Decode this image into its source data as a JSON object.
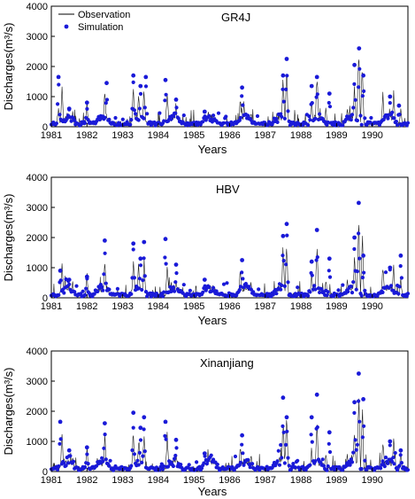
{
  "chart_data": [
    {
      "type": "line",
      "title": "GR4J",
      "xlabel": "Years",
      "ylabel": "Discharges(m³/s)",
      "ylim": [
        0,
        4000
      ],
      "xlim": [
        1981,
        1991
      ],
      "yticks": [
        "0",
        "1000",
        "2000",
        "3000",
        "4000"
      ],
      "xticks": [
        "1981",
        "1982",
        "1983",
        "1984",
        "1985",
        "1986",
        "1987",
        "1988",
        "1989",
        "1990"
      ],
      "legend": {
        "placement": "top-left",
        "entries": [
          "Observation",
          "Simulation"
        ]
      },
      "series": [
        {
          "name": "Observation",
          "style": "line",
          "color": "#000000",
          "peaks": [
            [
              1981.2,
              700
            ],
            [
              1981.3,
              1400
            ],
            [
              1981.6,
              600
            ],
            [
              1982.0,
              900
            ],
            [
              1982.5,
              1450
            ],
            [
              1983.3,
              1550
            ],
            [
              1983.45,
              1300
            ],
            [
              1983.6,
              1500
            ],
            [
              1984.25,
              1400
            ],
            [
              1984.5,
              700
            ],
            [
              1985.4,
              600
            ],
            [
              1986.3,
              1050
            ],
            [
              1986.6,
              600
            ],
            [
              1987.5,
              1950
            ],
            [
              1987.6,
              2250
            ],
            [
              1988.3,
              900
            ],
            [
              1988.45,
              2050
            ],
            [
              1988.7,
              700
            ],
            [
              1989.3,
              650
            ],
            [
              1989.5,
              1600
            ],
            [
              1989.62,
              3100
            ],
            [
              1989.72,
              2500
            ],
            [
              1990.3,
              1200
            ],
            [
              1990.6,
              1300
            ],
            [
              1990.8,
              700
            ]
          ]
        },
        {
          "name": "Simulation",
          "style": "markers",
          "color": "#1a1ad8",
          "peaks": [
            [
              1981.2,
              1650
            ],
            [
              1981.5,
              600
            ],
            [
              1982.0,
              800
            ],
            [
              1982.55,
              1450
            ],
            [
              1983.3,
              1700
            ],
            [
              1983.5,
              1350
            ],
            [
              1983.65,
              1650
            ],
            [
              1984.2,
              1550
            ],
            [
              1984.5,
              900
            ],
            [
              1985.3,
              500
            ],
            [
              1986.35,
              1300
            ],
            [
              1987.5,
              1700
            ],
            [
              1987.6,
              2250
            ],
            [
              1988.3,
              1350
            ],
            [
              1988.45,
              1650
            ],
            [
              1988.8,
              1100
            ],
            [
              1989.5,
              2050
            ],
            [
              1989.63,
              2600
            ],
            [
              1989.75,
              1700
            ],
            [
              1990.5,
              1000
            ],
            [
              1990.75,
              700
            ]
          ]
        }
      ]
    },
    {
      "type": "line",
      "title": "HBV",
      "xlabel": "Years",
      "ylabel": "Discharges(m³/s)",
      "ylim": [
        0,
        4000
      ],
      "xlim": [
        1981,
        1991
      ],
      "yticks": [
        "0",
        "1000",
        "2000",
        "3000",
        "4000"
      ],
      "xticks": [
        "1981",
        "1982",
        "1983",
        "1984",
        "1985",
        "1986",
        "1987",
        "1988",
        "1989",
        "1990"
      ],
      "series": [
        {
          "name": "Observation",
          "style": "line",
          "color": "#000000",
          "peaks": [
            [
              1981.3,
              1450
            ],
            [
              1981.6,
              600
            ],
            [
              1982.0,
              900
            ],
            [
              1982.5,
              1450
            ],
            [
              1983.3,
              1500
            ],
            [
              1983.45,
              1300
            ],
            [
              1983.6,
              1500
            ],
            [
              1984.25,
              1400
            ],
            [
              1984.5,
              700
            ],
            [
              1985.4,
              600
            ],
            [
              1986.3,
              1050
            ],
            [
              1986.6,
              600
            ],
            [
              1987.5,
              1950
            ],
            [
              1987.6,
              2200
            ],
            [
              1988.3,
              900
            ],
            [
              1988.45,
              2050
            ],
            [
              1988.7,
              700
            ],
            [
              1989.3,
              650
            ],
            [
              1989.5,
              1600
            ],
            [
              1989.62,
              3000
            ],
            [
              1989.72,
              2400
            ],
            [
              1990.3,
              1200
            ],
            [
              1990.6,
              1300
            ],
            [
              1990.8,
              700
            ]
          ]
        },
        {
          "name": "Simulation",
          "style": "markers",
          "color": "#1a1ad8",
          "peaks": [
            [
              1981.25,
              900
            ],
            [
              1981.5,
              600
            ],
            [
              1982.0,
              700
            ],
            [
              1982.5,
              1900
            ],
            [
              1983.3,
              1800
            ],
            [
              1983.5,
              1300
            ],
            [
              1983.6,
              1850
            ],
            [
              1984.2,
              1950
            ],
            [
              1984.5,
              1100
            ],
            [
              1985.3,
              600
            ],
            [
              1986.35,
              1250
            ],
            [
              1987.5,
              2050
            ],
            [
              1987.6,
              2450
            ],
            [
              1988.3,
              1200
            ],
            [
              1988.45,
              2250
            ],
            [
              1988.8,
              1300
            ],
            [
              1989.5,
              2000
            ],
            [
              1989.62,
              3150
            ],
            [
              1989.75,
              1400
            ],
            [
              1990.5,
              1000
            ],
            [
              1990.8,
              1400
            ]
          ]
        }
      ]
    },
    {
      "type": "line",
      "title": "Xinanjiang",
      "xlabel": "Years",
      "ylabel": "Discharges(m³/s)",
      "ylim": [
        0,
        4000
      ],
      "xlim": [
        1981,
        1991
      ],
      "yticks": [
        "0",
        "1000",
        "2000",
        "3000",
        "4000"
      ],
      "xticks": [
        "1981",
        "1982",
        "1983",
        "1984",
        "1985",
        "1986",
        "1987",
        "1988",
        "1989",
        "1990"
      ],
      "series": [
        {
          "name": "Observation",
          "style": "line",
          "color": "#000000",
          "peaks": [
            [
              1981.3,
              1400
            ],
            [
              1981.6,
              600
            ],
            [
              1982.0,
              900
            ],
            [
              1982.5,
              1450
            ],
            [
              1983.3,
              1500
            ],
            [
              1983.45,
              1300
            ],
            [
              1983.6,
              1500
            ],
            [
              1984.25,
              1400
            ],
            [
              1984.5,
              700
            ],
            [
              1985.4,
              600
            ],
            [
              1986.3,
              1050
            ],
            [
              1986.6,
              600
            ],
            [
              1987.5,
              1950
            ],
            [
              1987.6,
              2200
            ],
            [
              1988.3,
              900
            ],
            [
              1988.45,
              2100
            ],
            [
              1988.7,
              700
            ],
            [
              1989.3,
              650
            ],
            [
              1989.5,
              1600
            ],
            [
              1989.62,
              3000
            ],
            [
              1989.72,
              2400
            ],
            [
              1990.3,
              1200
            ],
            [
              1990.6,
              1300
            ],
            [
              1990.8,
              700
            ]
          ]
        },
        {
          "name": "Simulation",
          "style": "markers",
          "color": "#1a1ad8",
          "peaks": [
            [
              1981.25,
              1650
            ],
            [
              1981.5,
              700
            ],
            [
              1982.0,
              800
            ],
            [
              1982.5,
              1600
            ],
            [
              1983.3,
              1950
            ],
            [
              1983.5,
              1450
            ],
            [
              1983.6,
              1800
            ],
            [
              1984.2,
              1650
            ],
            [
              1984.5,
              1050
            ],
            [
              1985.3,
              600
            ],
            [
              1986.35,
              1200
            ],
            [
              1987.5,
              2450
            ],
            [
              1987.6,
              1800
            ],
            [
              1988.3,
              1800
            ],
            [
              1988.45,
              2550
            ],
            [
              1988.8,
              1300
            ],
            [
              1989.5,
              2300
            ],
            [
              1989.62,
              3250
            ],
            [
              1989.75,
              2400
            ],
            [
              1990.5,
              1000
            ],
            [
              1990.8,
              700
            ]
          ]
        }
      ]
    }
  ]
}
